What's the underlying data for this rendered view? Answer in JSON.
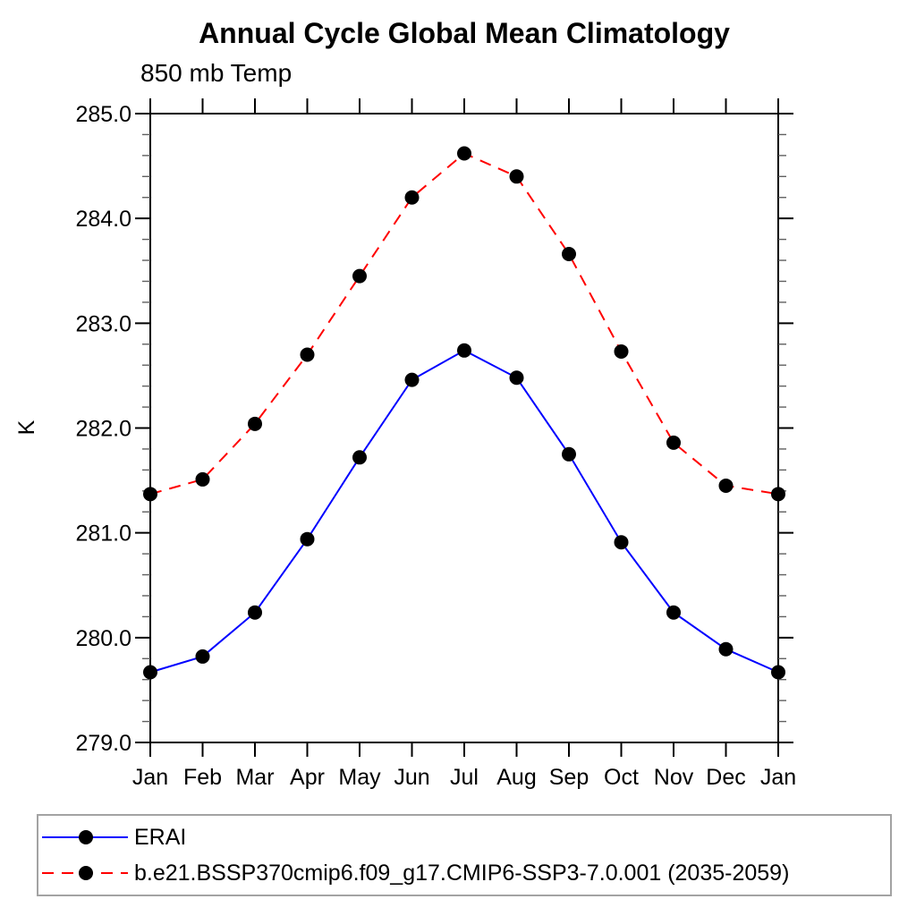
{
  "chart_data": {
    "type": "line",
    "title": "Annual Cycle Global Mean Climatology",
    "subtitle": "850 mb Temp",
    "ylabel": "K",
    "ylim": [
      279.0,
      285.0
    ],
    "ytick_step": 1.0,
    "yminor_step": 0.2,
    "ytick_labels": [
      "285.0",
      "284.0",
      "283.0",
      "282.0",
      "281.0",
      "280.0",
      "279.0"
    ],
    "x_categories": [
      "Jan",
      "Feb",
      "Mar",
      "Apr",
      "May",
      "Jun",
      "Jul",
      "Aug",
      "Sep",
      "Oct",
      "Nov",
      "Dec",
      "Jan"
    ],
    "series": [
      {
        "name": "ERAI",
        "color": "#0000ff",
        "line_style": "solid",
        "marker": "filled-circle",
        "marker_color": "#000000",
        "values": [
          279.67,
          279.82,
          280.24,
          280.94,
          281.72,
          282.46,
          282.74,
          282.48,
          281.75,
          280.91,
          280.24,
          279.89,
          279.67
        ]
      },
      {
        "name": "b.e21.BSSP370cmip6.f09_g17.CMIP6-SSP3-7.0.001 (2035-2059)",
        "color": "#ff0000",
        "line_style": "dashed",
        "marker": "filled-circle",
        "marker_color": "#000000",
        "values": [
          281.37,
          281.51,
          282.04,
          282.7,
          283.45,
          284.2,
          284.62,
          284.4,
          283.66,
          282.73,
          281.86,
          281.45,
          281.37
        ]
      }
    ],
    "legend_position": "bottom-left",
    "grid": false,
    "frame": "box-with-outward-ticks"
  },
  "colors": {
    "axis": "#000000",
    "minor_tick": "#606060",
    "text": "#000000",
    "legend_border": "#a3a3a3",
    "background": "#ffffff"
  }
}
